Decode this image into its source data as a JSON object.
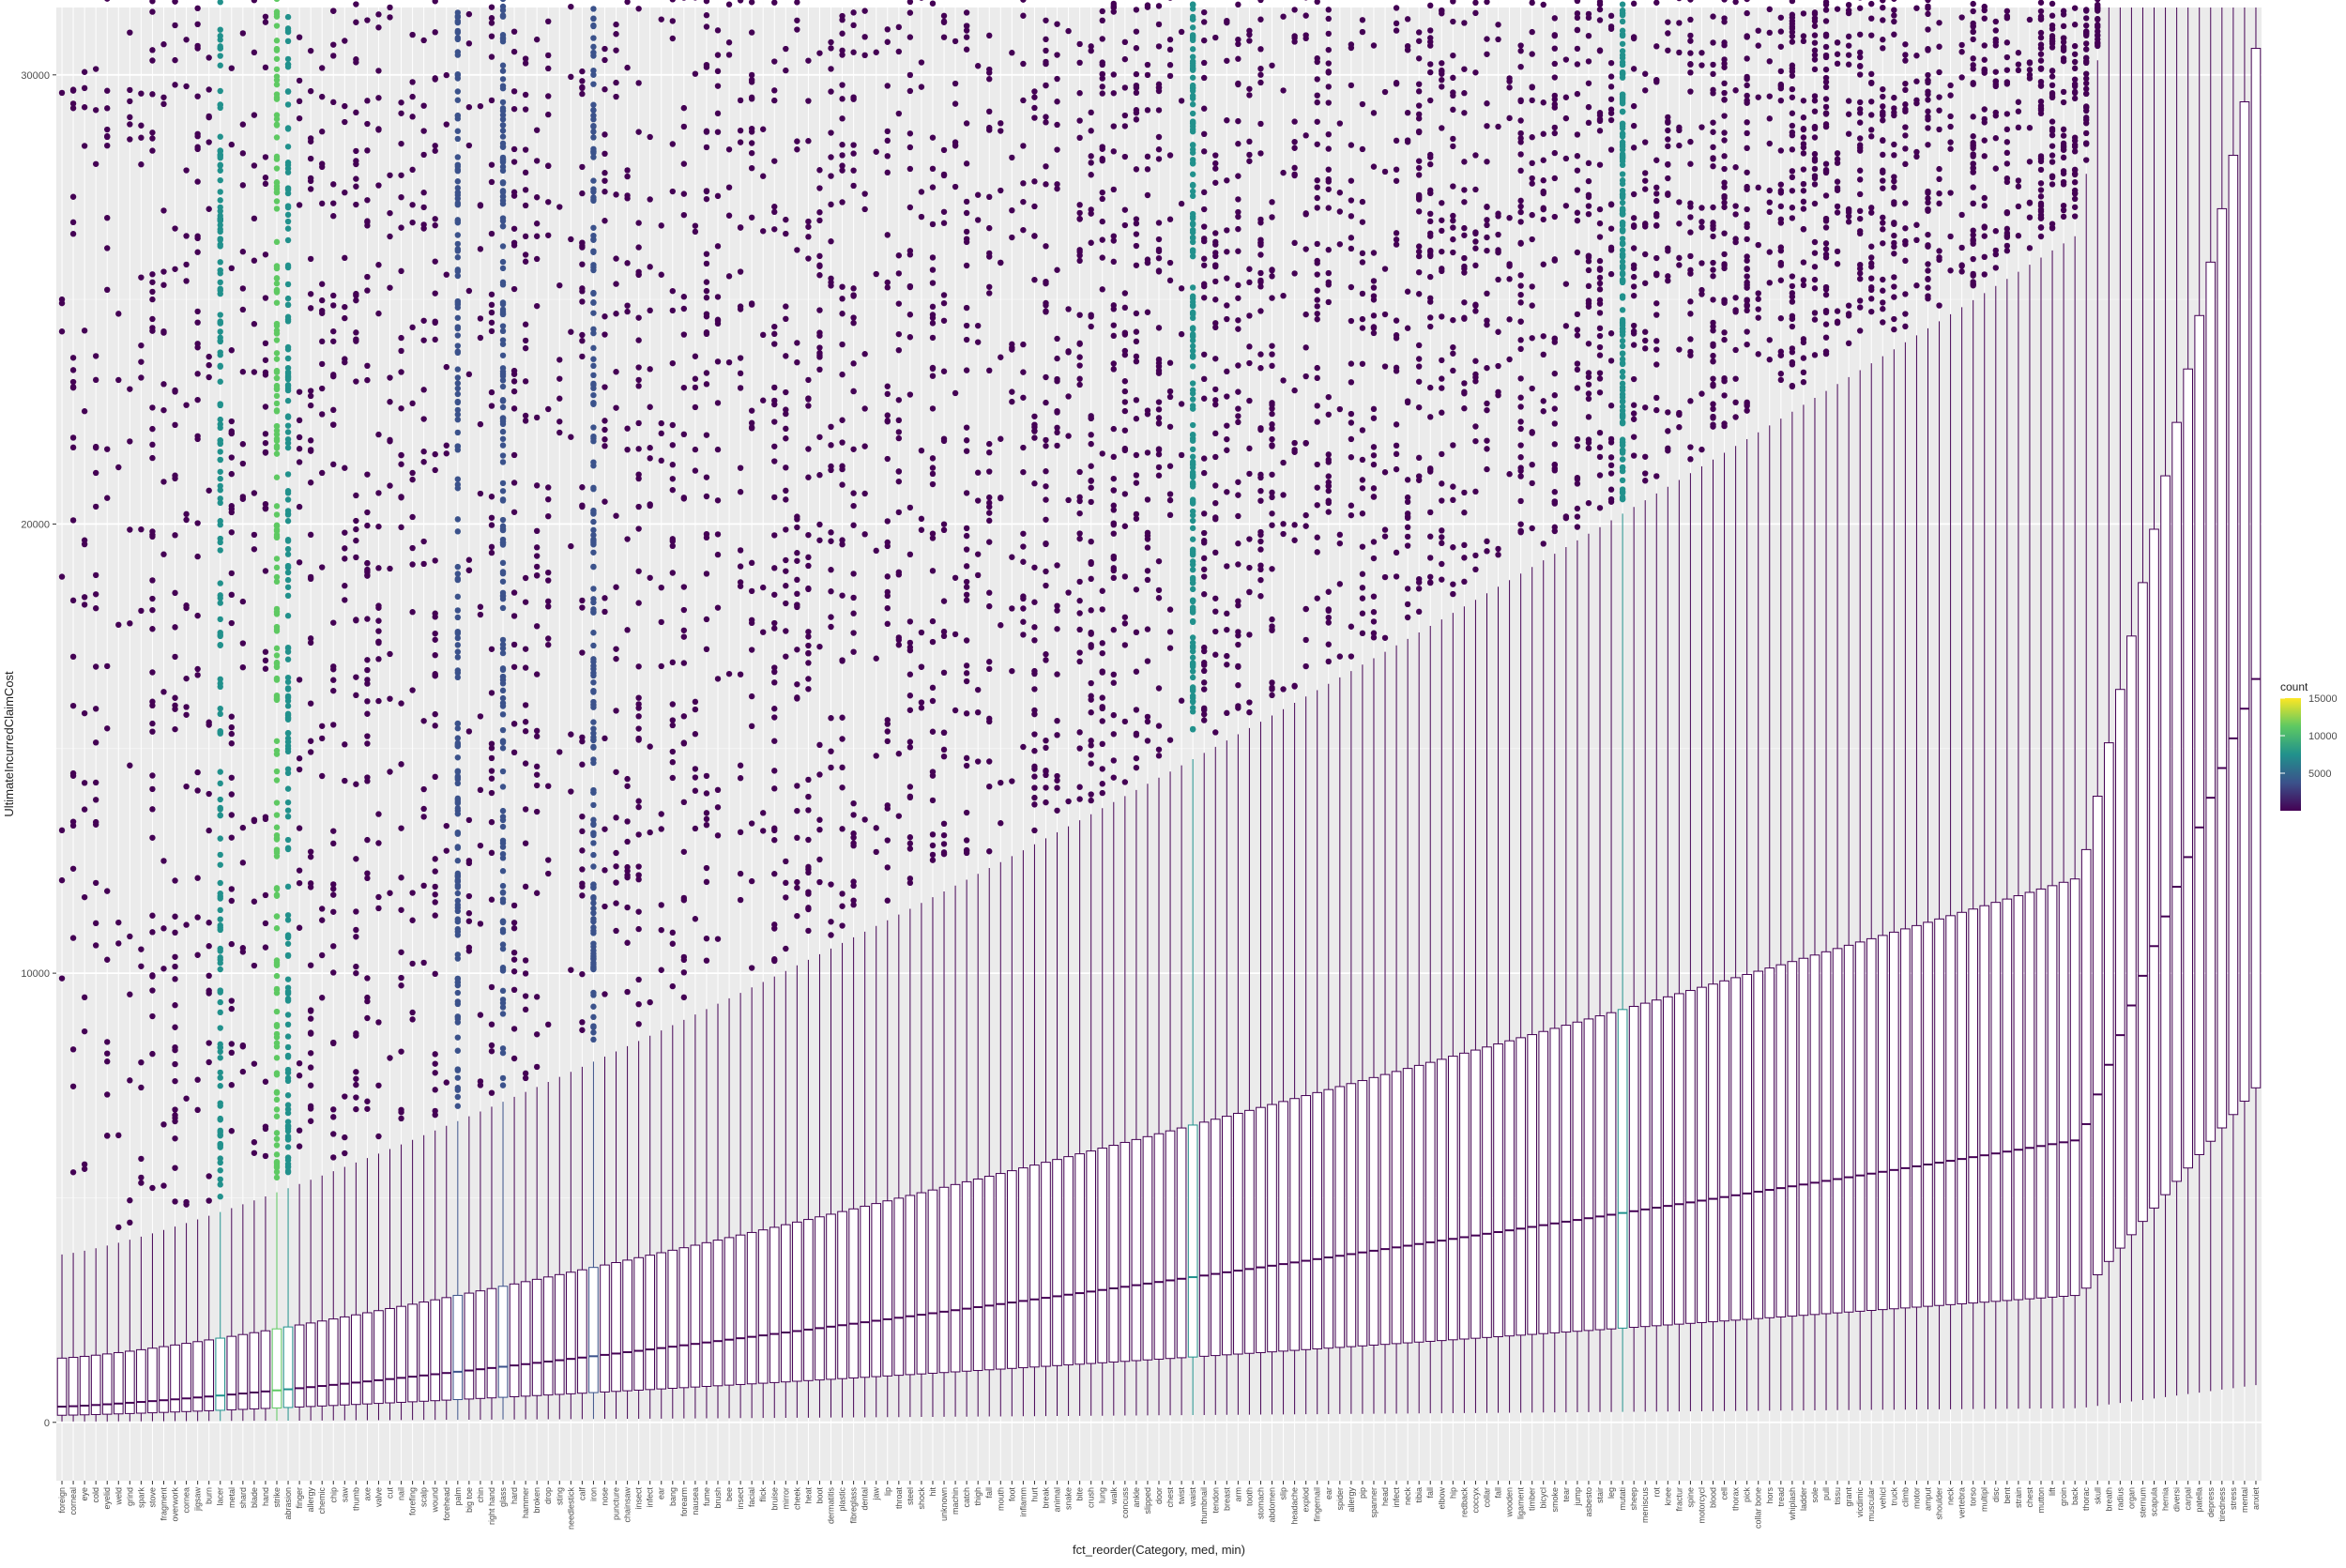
{
  "chart_data": {
    "type": "boxplot",
    "title": "",
    "xlabel": "fct_reorder(Category, med, min)",
    "ylabel": "UltimateIncurredClaimCost",
    "ylim": [
      -1300,
      31500
    ],
    "y_ticks": [
      0,
      10000,
      20000,
      30000
    ],
    "grid": true,
    "legend": {
      "title": "count",
      "position": "right",
      "range": [
        0,
        15000
      ],
      "ticks": [
        5000,
        10000,
        15000
      ],
      "colors": [
        "#440154",
        "#3b528b",
        "#21918c",
        "#5ec962",
        "#fde725"
      ]
    },
    "categories": [
      "foreign",
      "corneal",
      "eye",
      "cold",
      "eyelid",
      "weld",
      "grind",
      "spark",
      "stove",
      "fragment",
      "overwork",
      "cornea",
      "jigsaw",
      "burn",
      "lacer",
      "metal",
      "shard",
      "blade",
      "hand",
      "strike",
      "abrasion",
      "finger",
      "allergy",
      "chemic",
      "chip",
      "saw",
      "thumb",
      "axe",
      "valve",
      "cut",
      "nail",
      "forefing",
      "scalp",
      "wound",
      "forehead",
      "palm",
      "big toe",
      "chin",
      "right hand",
      "glass",
      "hard",
      "hammer",
      "broken",
      "drop",
      "sting",
      "needlestick",
      "calf",
      "iron",
      "nose",
      "puncture",
      "chainsaw",
      "insect",
      "infect",
      "ear",
      "bang",
      "forearm",
      "nausea",
      "fume",
      "brush",
      "bee",
      "insect",
      "facial",
      "flick",
      "bruise",
      "mirror",
      "cheek",
      "heat",
      "boot",
      "dermatitis",
      "plastic",
      "fibreglass",
      "dental",
      "jaw",
      "lip",
      "throat",
      "steel",
      "shock",
      "hit",
      "unknown",
      "machin",
      "catch",
      "thigh",
      "fall",
      "mouth",
      "foot",
      "inflamm",
      "hurt",
      "break",
      "animal",
      "snake",
      "bite",
      "crush",
      "lung",
      "walk",
      "concuss",
      "ankle",
      "slipped",
      "door",
      "chest",
      "twist",
      "waist",
      "thumbnail",
      "tendon",
      "breast",
      "arm",
      "tooth",
      "stomach",
      "abdomen",
      "slip",
      "headache",
      "explod",
      "fingernail",
      "ear",
      "spider",
      "allergy",
      "pip",
      "spanner",
      "head",
      "infect",
      "neck",
      "tibia",
      "fall",
      "elbow",
      "hip",
      "redback",
      "coccyx",
      "collar",
      "fall",
      "wooden",
      "ligament",
      "timber",
      "bicycl",
      "smoke",
      "tear",
      "jump",
      "asbesto",
      "stair",
      "leg",
      "mutati",
      "sheep",
      "meniscus",
      "rot",
      "knee",
      "fractur",
      "spine",
      "motorcycl",
      "blood",
      "cell",
      "thorax",
      "pick",
      "collar bone",
      "hors",
      "tread",
      "whiplash",
      "ladder",
      "sole",
      "pull",
      "tissu",
      "grant",
      "vicdimic",
      "muscular",
      "vehicl",
      "truck",
      "climb",
      "motor",
      "amput",
      "shoulder",
      "neck",
      "vertebra",
      "torso",
      "multipl",
      "disc",
      "bent",
      "strain",
      "chest",
      "mutton",
      "lift",
      "groin",
      "back",
      "thorac",
      "skull",
      "breath",
      "radius",
      "organ",
      "sternum",
      "scapula",
      "hernia",
      "diversi",
      "carpal",
      "patella",
      "depress",
      "tiredness",
      "stress",
      "mental",
      "anxiet"
    ]
  }
}
